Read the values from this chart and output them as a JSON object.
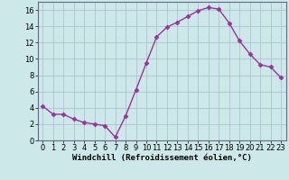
{
  "x": [
    0,
    1,
    2,
    3,
    4,
    5,
    6,
    7,
    8,
    9,
    10,
    11,
    12,
    13,
    14,
    15,
    16,
    17,
    18,
    19,
    20,
    21,
    22,
    23
  ],
  "y": [
    4.2,
    3.2,
    3.2,
    2.6,
    2.2,
    2.0,
    1.8,
    0.4,
    3.0,
    6.2,
    9.5,
    12.7,
    13.9,
    14.5,
    15.2,
    15.9,
    16.3,
    16.1,
    14.4,
    12.2,
    10.6,
    9.3,
    9.0,
    7.7
  ],
  "line_color": "#993399",
  "marker": "D",
  "marker_size": 2.5,
  "xlabel": "Windchill (Refroidissement éolien,°C)",
  "xlim": [
    -0.5,
    23.5
  ],
  "ylim": [
    0,
    17
  ],
  "xticks": [
    0,
    1,
    2,
    3,
    4,
    5,
    6,
    7,
    8,
    9,
    10,
    11,
    12,
    13,
    14,
    15,
    16,
    17,
    18,
    19,
    20,
    21,
    22,
    23
  ],
  "yticks": [
    0,
    2,
    4,
    6,
    8,
    10,
    12,
    14,
    16
  ],
  "background_color": "#cce8e8",
  "grid_color": "#aabbcc",
  "xlabel_fontsize": 6.5,
  "tick_fontsize": 6.0,
  "line_width": 1.0
}
